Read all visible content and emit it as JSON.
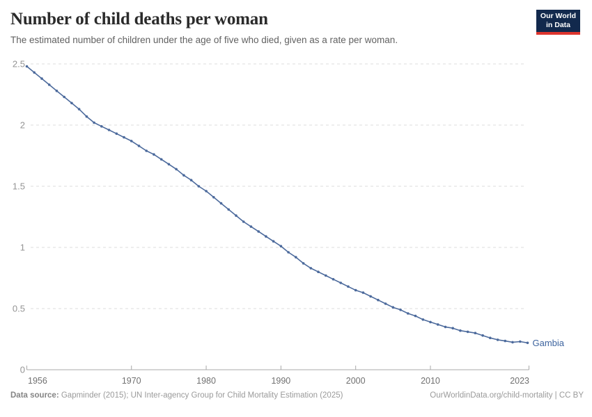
{
  "header": {
    "title": "Number of child deaths per woman",
    "subtitle": "The estimated number of children under the age of five who died, given as a rate per woman.",
    "logo": {
      "line1": "Our World",
      "line2": "in Data"
    }
  },
  "chart_data": {
    "type": "line",
    "title": "Number of child deaths per woman",
    "xlabel": "",
    "ylabel": "",
    "xlim": [
      1956,
      2023
    ],
    "ylim": [
      0,
      2.5
    ],
    "x_ticks": [
      1956,
      1970,
      1980,
      1990,
      2000,
      2010,
      2023
    ],
    "y_ticks": [
      0,
      0.5,
      1,
      1.5,
      2,
      2.5
    ],
    "y_tick_labels": [
      "0",
      "0.5",
      "1",
      "1.5",
      "2",
      "2.5"
    ],
    "grid": "horizontal-dashed",
    "legend_position": "end-of-line-label",
    "series": [
      {
        "name": "Gambia",
        "color": "#4C6A9C",
        "label_color": "#3d649f",
        "x": [
          1956,
          1957,
          1958,
          1959,
          1960,
          1961,
          1962,
          1963,
          1964,
          1965,
          1966,
          1967,
          1968,
          1969,
          1970,
          1971,
          1972,
          1973,
          1974,
          1975,
          1976,
          1977,
          1978,
          1979,
          1980,
          1981,
          1982,
          1983,
          1984,
          1985,
          1986,
          1987,
          1988,
          1989,
          1990,
          1991,
          1992,
          1993,
          1994,
          1995,
          1996,
          1997,
          1998,
          1999,
          2000,
          2001,
          2002,
          2003,
          2004,
          2005,
          2006,
          2007,
          2008,
          2009,
          2010,
          2011,
          2012,
          2013,
          2014,
          2015,
          2016,
          2017,
          2018,
          2019,
          2020,
          2021,
          2022,
          2023
        ],
        "values": [
          2.48,
          2.43,
          2.38,
          2.33,
          2.28,
          2.23,
          2.18,
          2.13,
          2.07,
          2.02,
          1.99,
          1.96,
          1.93,
          1.9,
          1.87,
          1.83,
          1.79,
          1.76,
          1.72,
          1.68,
          1.64,
          1.59,
          1.55,
          1.5,
          1.46,
          1.41,
          1.36,
          1.31,
          1.26,
          1.21,
          1.17,
          1.13,
          1.09,
          1.05,
          1.01,
          0.96,
          0.92,
          0.87,
          0.83,
          0.8,
          0.77,
          0.74,
          0.71,
          0.68,
          0.65,
          0.63,
          0.6,
          0.57,
          0.54,
          0.51,
          0.49,
          0.46,
          0.44,
          0.41,
          0.39,
          0.37,
          0.35,
          0.34,
          0.32,
          0.31,
          0.3,
          0.28,
          0.26,
          0.245,
          0.235,
          0.225,
          0.23,
          0.22
        ]
      }
    ],
    "colors": {
      "gridline": "#dedede",
      "axis": "#a8a8a8",
      "y_tick_label": "#949494",
      "x_tick_label": "#707070"
    }
  },
  "footer": {
    "source_label": "Data source:",
    "source_text": " Gapminder (2015); UN Inter-agency Group for Child Mortality Estimation (2025)",
    "link_text": "OurWorldinData.org/child-mortality | CC BY"
  }
}
